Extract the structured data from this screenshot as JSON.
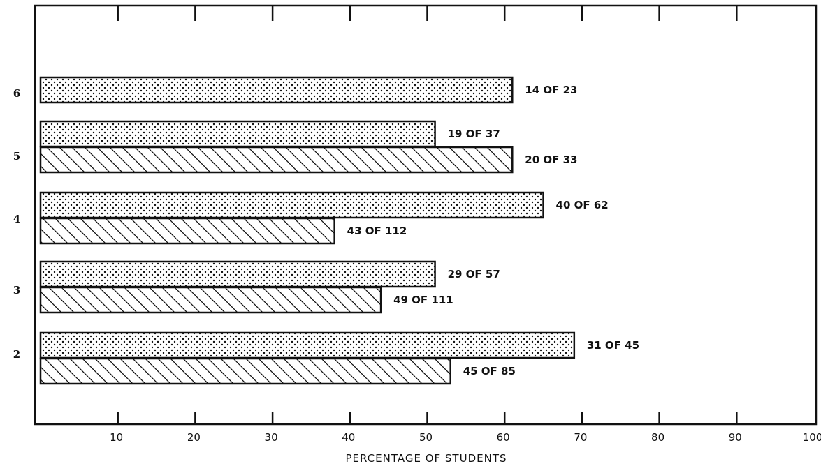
{
  "chart_data": {
    "type": "bar",
    "orientation": "horizontal",
    "xlabel": "PERCENTAGE OF STUDENTS",
    "ylabel": "",
    "xlim": [
      0,
      100
    ],
    "x_ticks": [
      10,
      20,
      30,
      40,
      50,
      60,
      70,
      80,
      90,
      100
    ],
    "grid": false,
    "legend": "none",
    "categories": [
      "6",
      "5",
      "4",
      "3",
      "2"
    ],
    "series": [
      {
        "pattern": "dotted",
        "values": [
          61,
          51,
          65,
          51,
          69
        ],
        "labels": [
          "14 OF 23",
          "19 OF 37",
          "40 OF 62",
          "29 OF 57",
          "31 OF 45"
        ]
      },
      {
        "pattern": "hatched",
        "values": [
          null,
          61,
          38,
          44,
          53
        ],
        "labels": [
          "",
          "20 OF 33",
          "43 OF 112",
          "49 OF 111",
          "45 OF 85"
        ]
      }
    ],
    "colors": {
      "ink": "#111111",
      "paper": "#ffffff"
    }
  }
}
